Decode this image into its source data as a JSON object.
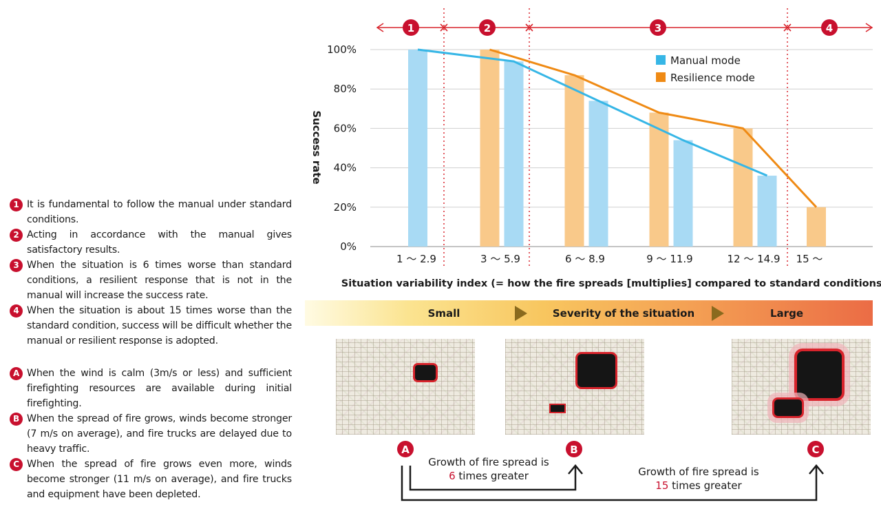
{
  "notes": {
    "numbered": [
      {
        "mark": "1",
        "text": "It is fundamental to follow the manual under standard conditions."
      },
      {
        "mark": "2",
        "text": "Acting in accordance with the manual gives satisfactory results."
      },
      {
        "mark": "3",
        "text": "When the situation is 6 times worse than standard conditions, a resilient response that is not in the manual will increase the success rate."
      },
      {
        "mark": "4",
        "text": "When the situation is about 15 times worse than the standard condition, success will be difficult whether the manual or resilient response is adopted."
      }
    ],
    "lettered": [
      {
        "mark": "A",
        "text": "When the wind is calm (3m/s or less) and sufficient firefighting resources are available during initial firefighting."
      },
      {
        "mark": "B",
        "text": "When the spread of fire grows, winds become stronger (7 m/s on average), and fire trucks are delayed due to heavy traffic."
      },
      {
        "mark": "C",
        "text": "When the spread of fire grows even more, winds become stronger (11 m/s on average), and fire trucks and equipment have been depleted."
      }
    ]
  },
  "chart_data": {
    "type": "bar",
    "categories": [
      "1 〜 2.9",
      "3 〜 5.9",
      "6 〜 8.9",
      "9 〜 11.9",
      "12 〜 14.9",
      "15 〜"
    ],
    "series": [
      {
        "name": "Manual mode",
        "color": "#36b6e6",
        "bar_color": "#a8daf4",
        "values": [
          100,
          94,
          74,
          54,
          36,
          null
        ]
      },
      {
        "name": "Resilience mode",
        "color": "#ef8a14",
        "bar_color": "#f9c98a",
        "values": [
          null,
          100,
          87,
          68,
          60,
          20
        ]
      }
    ],
    "ylabel": "Success rate",
    "xlabel": "Situation variability index (= how the fire spreads [multiplies] compared to standard conditions)",
    "ylim": [
      0,
      100
    ],
    "yticks": [
      0,
      20,
      40,
      60,
      80,
      100
    ],
    "ytick_labels": [
      "0%",
      "20%",
      "40%",
      "60%",
      "80%",
      "100%"
    ],
    "zones": [
      "1",
      "2",
      "3",
      "4"
    ],
    "legend_position": "top-right"
  },
  "severity": {
    "small": "Small",
    "middle": "Severity of the situation",
    "large": "Large"
  },
  "maps": [
    "A",
    "B",
    "C"
  ],
  "growth": {
    "ab_line1": "Growth of fire spread is",
    "ab_factor": "6",
    "ab_line2": "times greater",
    "ac_line1": "Growth of fire spread is",
    "ac_factor": "15",
    "ac_line2": "times greater"
  },
  "colors": {
    "accent_red": "#c8102e",
    "arrow": "#1a1a1a",
    "chevron": "#8a6a1e"
  }
}
